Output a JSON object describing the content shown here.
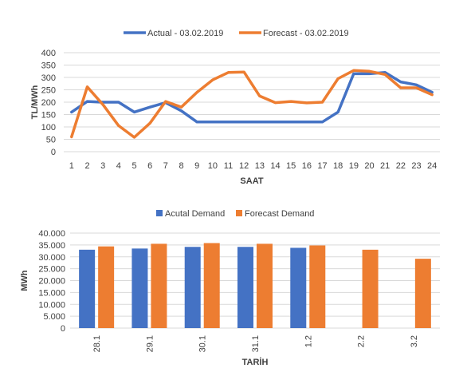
{
  "chart_data": [
    {
      "type": "line",
      "title": "",
      "xlabel": "SAAT",
      "ylabel": "TL/MWh",
      "ylim": [
        0,
        400
      ],
      "yticks": [
        0,
        50,
        100,
        150,
        200,
        250,
        300,
        350,
        400
      ],
      "grid": true,
      "legend": "top",
      "categories": [
        "1",
        "2",
        "3",
        "4",
        "5",
        "6",
        "7",
        "8",
        "9",
        "10",
        "11",
        "12",
        "13",
        "14",
        "15",
        "16",
        "17",
        "18",
        "19",
        "20",
        "21",
        "22",
        "23",
        "24"
      ],
      "series": [
        {
          "name": "Actual - 03.02.2019",
          "color": "#4472c4",
          "values": [
            160,
            203,
            200,
            200,
            160,
            180,
            198,
            165,
            120,
            120,
            120,
            120,
            120,
            120,
            120,
            120,
            120,
            160,
            315,
            315,
            320,
            282,
            270,
            240
          ]
        },
        {
          "name": "Forecast - 03.02.2019",
          "color": "#ed7d31",
          "values": [
            60,
            262,
            190,
            105,
            58,
            115,
            203,
            180,
            240,
            290,
            320,
            322,
            225,
            198,
            203,
            197,
            200,
            295,
            328,
            325,
            312,
            258,
            258,
            230
          ]
        }
      ]
    },
    {
      "type": "bar",
      "title": "",
      "xlabel": "TARİH",
      "ylabel": "MWh",
      "ylim": [
        0,
        40000
      ],
      "ytick_labels": [
        "0",
        "5.000",
        "10.000",
        "15.000",
        "20.000",
        "25.000",
        "30.000",
        "35.000",
        "40.000"
      ],
      "grid": true,
      "legend": "top",
      "categories": [
        "28.1",
        "29.1",
        "30.1",
        "31.1",
        "1.2",
        "2.2",
        "3.2"
      ],
      "series": [
        {
          "name": "Acutal Demand",
          "color": "#4472c4",
          "values": [
            33000,
            33500,
            34200,
            34200,
            33800,
            null,
            null
          ]
        },
        {
          "name": "Forecast Demand",
          "color": "#ed7d31",
          "values": [
            34400,
            35500,
            35800,
            35500,
            34800,
            33000,
            29200
          ]
        }
      ]
    }
  ]
}
